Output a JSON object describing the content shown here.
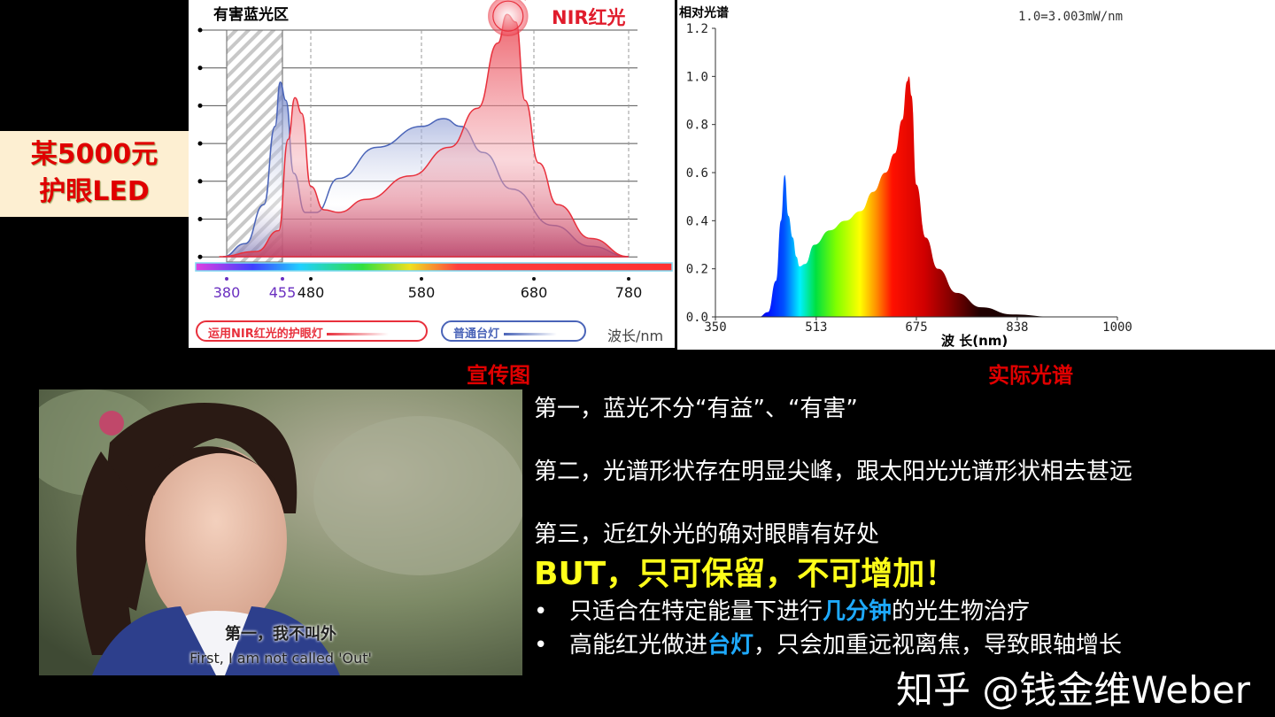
{
  "label": {
    "line1": "某5000元",
    "line2": "护眼LED"
  },
  "captions": {
    "left": "宣传图",
    "right": "实际光谱"
  },
  "chart_data": [
    {
      "type": "area",
      "title": "有害蓝光区",
      "annotation": "NIR红光",
      "xlabel": "波长/nm",
      "x_ticks": [
        380,
        455,
        480,
        580,
        680,
        780
      ],
      "highlight_band": [
        380,
        455
      ],
      "ylim": [
        0,
        1
      ],
      "grid": true,
      "legend_position": "bottom",
      "series": [
        {
          "name": "运用NIR红光的护眼灯",
          "color": "#e8303c",
          "points": [
            [
              370,
              0
            ],
            [
              420,
              0.02
            ],
            [
              450,
              0.1
            ],
            [
              460,
              0.45
            ],
            [
              466,
              0.61
            ],
            [
              472,
              0.55
            ],
            [
              480,
              0.27
            ],
            [
              492,
              0.18
            ],
            [
              505,
              0.17
            ],
            [
              530,
              0.22
            ],
            [
              570,
              0.31
            ],
            [
              605,
              0.42
            ],
            [
              630,
              0.57
            ],
            [
              648,
              0.82
            ],
            [
              656,
              0.93
            ],
            [
              664,
              0.9
            ],
            [
              672,
              0.6
            ],
            [
              685,
              0.36
            ],
            [
              705,
              0.2
            ],
            [
              740,
              0.07
            ],
            [
              780,
              0
            ]
          ]
        },
        {
          "name": "普通台灯",
          "color": "#4a64b8",
          "points": [
            [
              375,
              0
            ],
            [
              405,
              0.05
            ],
            [
              430,
              0.2
            ],
            [
              445,
              0.5
            ],
            [
              452,
              0.67
            ],
            [
              458,
              0.6
            ],
            [
              465,
              0.32
            ],
            [
              475,
              0.17
            ],
            [
              485,
              0.17
            ],
            [
              505,
              0.3
            ],
            [
              540,
              0.42
            ],
            [
              580,
              0.5
            ],
            [
              600,
              0.53
            ],
            [
              615,
              0.5
            ],
            [
              635,
              0.4
            ],
            [
              660,
              0.26
            ],
            [
              700,
              0.12
            ],
            [
              740,
              0.04
            ],
            [
              780,
              0
            ]
          ]
        }
      ]
    },
    {
      "type": "area",
      "title": "相对光谱",
      "annotation": "1.0=3.003mW/nm",
      "xlabel": "波 长(nm)",
      "x_ticks": [
        350,
        513,
        675,
        838,
        1000
      ],
      "y_ticks": [
        "0.0",
        "0.2",
        "0.4",
        "0.6",
        "0.8",
        "1.0",
        "1.2"
      ],
      "xlim": [
        350,
        1000
      ],
      "ylim": [
        0,
        1.2
      ],
      "grid": false,
      "series": [
        {
          "points": [
            [
              350,
              0
            ],
            [
              420,
              0
            ],
            [
              435,
              0.02
            ],
            [
              448,
              0.15
            ],
            [
              456,
              0.4
            ],
            [
              462,
              0.59
            ],
            [
              468,
              0.42
            ],
            [
              475,
              0.33
            ],
            [
              481,
              0.25
            ],
            [
              486,
              0.21
            ],
            [
              495,
              0.22
            ],
            [
              510,
              0.3
            ],
            [
              535,
              0.36
            ],
            [
              560,
              0.4
            ],
            [
              585,
              0.44
            ],
            [
              605,
              0.52
            ],
            [
              625,
              0.6
            ],
            [
              640,
              0.68
            ],
            [
              652,
              0.82
            ],
            [
              660,
              0.98
            ],
            [
              663,
              1.0
            ],
            [
              667,
              0.92
            ],
            [
              675,
              0.55
            ],
            [
              690,
              0.33
            ],
            [
              710,
              0.2
            ],
            [
              740,
              0.1
            ],
            [
              780,
              0.04
            ],
            [
              830,
              0.01
            ],
            [
              900,
              0
            ],
            [
              1000,
              0
            ]
          ]
        }
      ]
    }
  ],
  "photo": {
    "subtitle_cn": "第一，我不叫外",
    "subtitle_en": "First, I am not called 'Out'"
  },
  "points": {
    "p1": "第一，蓝光不分“有益”、“有害”",
    "p2": "第二，光谱形状存在明显尖峰，跟太阳光光谱形状相去甚远",
    "p3": "第三，近红外光的确对眼睛有好处",
    "but": "BUT，只可保留，不可增加！",
    "b1_pre": "只适合在特定能量下进行",
    "b1_hl": "几分钟",
    "b1_post": "的光生物治疗",
    "b2_pre": "高能红光做进",
    "b2_hl": "台灯",
    "b2_post": "，只会加重远视离焦，导致眼轴增长",
    "bullet": "•"
  },
  "watermark": "知乎 @钱金维Weber",
  "colors": {
    "accent_red": "#e00000",
    "highlight_yellow": "#ffff1a",
    "highlight_blue": "#1eaaff"
  }
}
